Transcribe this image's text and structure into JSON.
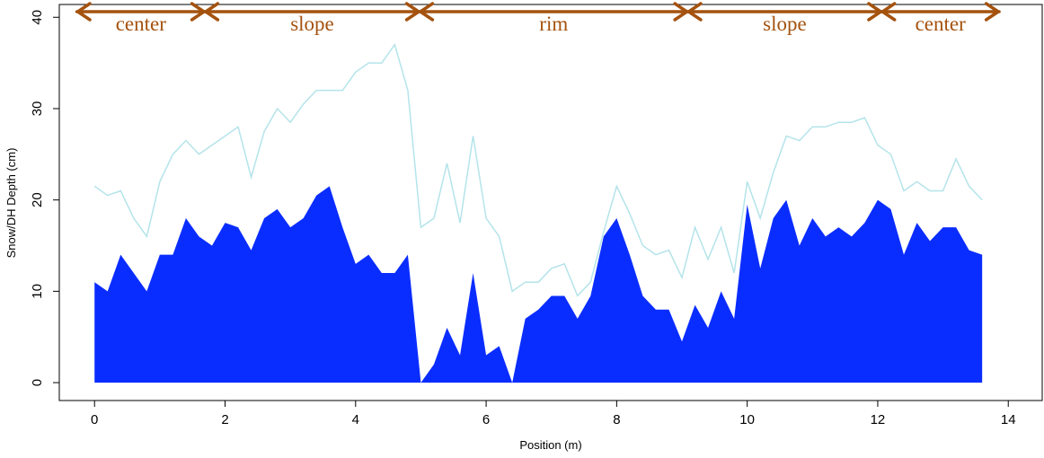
{
  "chart_data": {
    "type": "area",
    "xlabel": "Position (m)",
    "ylabel": "Snow/DH Depth (cm)",
    "x": [
      0,
      0.2,
      0.4,
      0.6,
      0.8,
      1.0,
      1.2,
      1.4,
      1.6,
      1.8,
      2.0,
      2.2,
      2.4,
      2.6,
      2.8,
      3.0,
      3.2,
      3.4,
      3.6,
      3.8,
      4.0,
      4.2,
      4.4,
      4.6,
      4.8,
      5.0,
      5.2,
      5.4,
      5.6,
      5.8,
      6.0,
      6.2,
      6.4,
      6.6,
      6.8,
      7.0,
      7.2,
      7.4,
      7.6,
      7.8,
      8.0,
      8.2,
      8.4,
      8.6,
      8.8,
      9.0,
      9.2,
      9.4,
      9.6,
      9.8,
      10.0,
      10.2,
      10.4,
      10.6,
      10.8,
      11.0,
      11.2,
      11.4,
      11.6,
      11.8,
      12.0,
      12.2,
      12.4,
      12.6,
      12.8,
      13.0,
      13.2,
      13.4,
      13.6
    ],
    "series": [
      {
        "style": "area",
        "color": "#0a2dff",
        "values": [
          11,
          10,
          14,
          12,
          10,
          14,
          14,
          18,
          16,
          15,
          17.5,
          17,
          14.5,
          18,
          19,
          17,
          18,
          20.5,
          21.5,
          17,
          13,
          14,
          12,
          12,
          14,
          0,
          2,
          6,
          3,
          12,
          3,
          4,
          0,
          7,
          8,
          9.5,
          9.5,
          7,
          9.5,
          16,
          18,
          14,
          9.5,
          8,
          8,
          4.5,
          8.5,
          6,
          10,
          7,
          19.5,
          12.5,
          18,
          20,
          15,
          18,
          16,
          17,
          16,
          17.5,
          20,
          19,
          14,
          17.5,
          15.5,
          17,
          17,
          14.5,
          14
        ]
      },
      {
        "style": "line",
        "color": "#b4e4ea",
        "values": [
          21.5,
          20.5,
          21,
          18,
          16,
          22,
          25,
          26.5,
          25,
          26,
          27,
          28,
          22.5,
          27.5,
          30,
          28.5,
          30.5,
          32,
          32,
          32,
          34,
          35,
          35,
          37,
          32,
          17,
          18,
          24,
          17.5,
          27,
          18,
          16,
          10,
          11,
          11,
          12.5,
          13,
          9.5,
          11,
          16.5,
          21.5,
          18.5,
          15,
          14,
          14.5,
          11.5,
          17,
          13.5,
          17,
          12,
          22,
          18,
          23,
          27,
          26.5,
          28,
          28,
          28.5,
          28.5,
          29,
          26,
          25,
          21,
          22,
          21,
          21,
          24.5,
          21.5,
          20
        ]
      }
    ],
    "annotations": [
      {
        "text": "center",
        "x": [
          -0.27,
          1.69
        ]
      },
      {
        "text": "slope",
        "x": [
          1.69,
          4.98
        ]
      },
      {
        "text": "rim",
        "x": [
          4.98,
          9.09
        ]
      },
      {
        "text": "slope",
        "x": [
          9.09,
          12.06
        ]
      },
      {
        "text": "center",
        "x": [
          12.06,
          13.86
        ]
      }
    ],
    "annotation_color": "#a4520e",
    "xlim": [
      -0.54,
      14.52
    ],
    "ylim": [
      -1.96,
      41.4
    ],
    "xticks": [
      0,
      2,
      4,
      6,
      8,
      10,
      12,
      14
    ],
    "yticks": [
      0,
      10,
      20,
      30,
      40
    ],
    "grid": false
  }
}
